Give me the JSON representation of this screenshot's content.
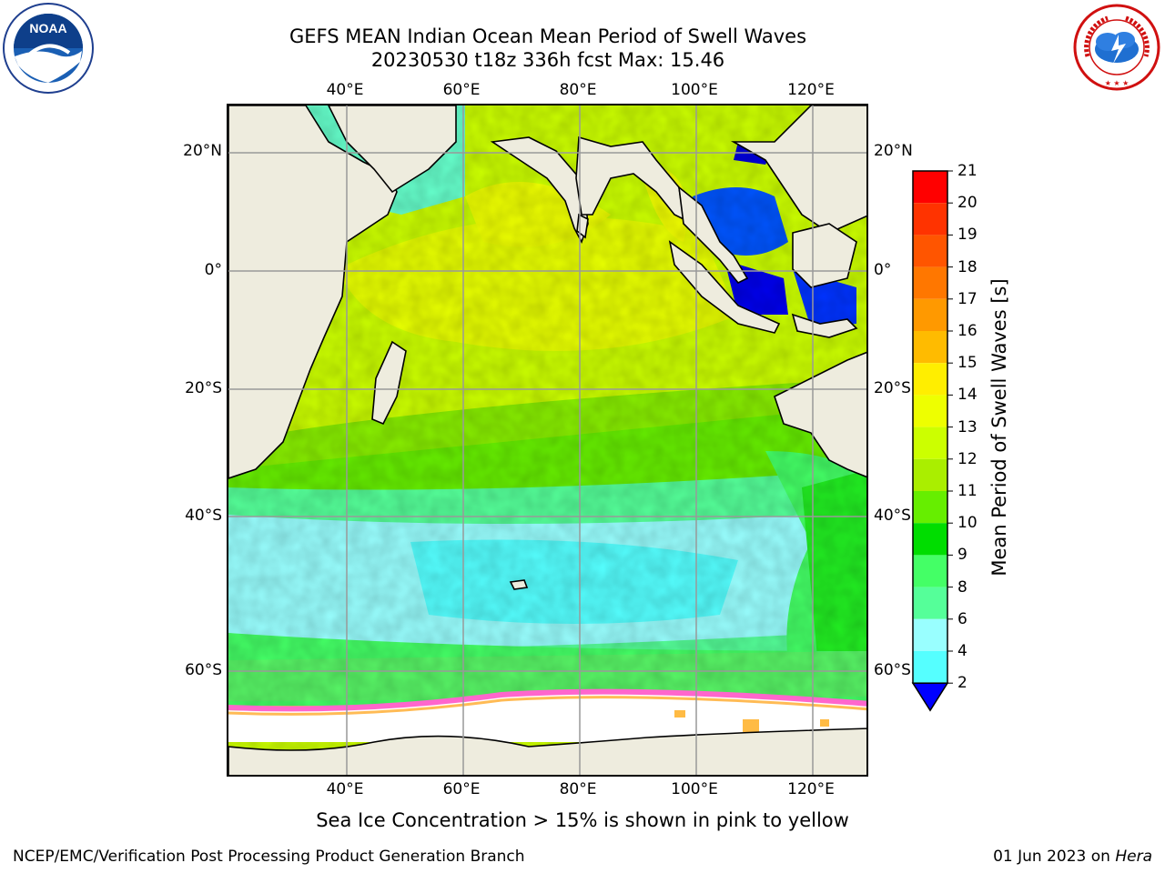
{
  "header": {
    "title_line1": "GEFS MEAN Indian Ocean Mean Period of Swell Waves",
    "title_line2": "20230530 t18z 336h fcst   Max: 15.46"
  },
  "map": {
    "lon_labels": [
      "40°E",
      "60°E",
      "80°E",
      "100°E",
      "120°E"
    ],
    "lat_labels": [
      "20°N",
      "0°",
      "20°S",
      "40°S",
      "60°S"
    ]
  },
  "colorbar": {
    "title": "Mean Period of Swell Waves [s]",
    "ticks": [
      "21",
      "20",
      "19",
      "18",
      "17",
      "16",
      "15",
      "14",
      "13",
      "12",
      "11",
      "10",
      "9",
      "8",
      "6",
      "4",
      "2"
    ],
    "colors": [
      "#ff0000",
      "#ff3300",
      "#ff5500",
      "#ff7700",
      "#ff9900",
      "#ffbb00",
      "#ffee00",
      "#eeff00",
      "#ccff00",
      "#aaee00",
      "#66ee00",
      "#00dd00",
      "#44ff66",
      "#55ff99",
      "#99ffff",
      "#55ffff",
      "#00ffff",
      "#00ccff",
      "#0077ff",
      "#0000ff"
    ]
  },
  "note": "Sea Ice Concentration > 15% is shown in pink to yellow",
  "footer": {
    "left": "NCEP/EMC/Verification Post Processing Product Generation Branch",
    "right_prefix": "01 Jun 2023 on ",
    "right_host": "Hera"
  },
  "logos": {
    "left": "NOAA",
    "right": "NATIONAL WEATHER SERVICE"
  }
}
